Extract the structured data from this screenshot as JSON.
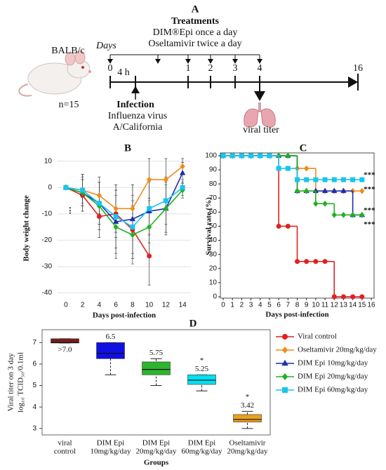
{
  "timeline": {
    "panel": "A",
    "treatments_title": "Treatments",
    "treatments": [
      "DIM®Epi once a day",
      "Oseltamivir twice a day"
    ],
    "days_label": "Days",
    "ticks": [
      "0",
      "4 h",
      "1",
      "2",
      "3",
      "4",
      "16"
    ],
    "strain": "BALB/c",
    "n": "n=15",
    "infection_title": "Infection",
    "infection_lines": [
      "Influenza virus",
      "A/California"
    ],
    "endpoint": "viral titer"
  },
  "legend": {
    "items": [
      {
        "name": "Viral control",
        "color": "#e02020",
        "marker": "circle"
      },
      {
        "name": "Oseltamivir 20mg/kg/day",
        "color": "#f08c1a",
        "marker": "diamond"
      },
      {
        "name": "DIM Epi 10mg/kg/day",
        "color": "#1a2fb0",
        "marker": "triangle"
      },
      {
        "name": "DIM Epi 20mg/kg/day",
        "color": "#22b022",
        "marker": "diamond"
      },
      {
        "name": "DIM Epi 60mg/kg/day",
        "color": "#19c4f0",
        "marker": "square"
      }
    ]
  },
  "chart_data": [
    {
      "type": "line",
      "panel": "B",
      "xlabel": "Days post-infection",
      "ylabel": "Body weight change",
      "x": [
        0,
        2,
        4,
        6,
        8,
        10,
        12,
        14
      ],
      "xlim": [
        -1,
        15
      ],
      "xticks": [
        0,
        2,
        4,
        6,
        8,
        10,
        12,
        14
      ],
      "ylim": [
        -42,
        11
      ],
      "yticks": [
        -40,
        -30,
        -20,
        -10,
        0,
        10
      ],
      "grid": true,
      "series": [
        {
          "values": [
            0,
            -3,
            -11,
            -10,
            -16,
            -26,
            null,
            null
          ],
          "errors": [
            0,
            6,
            8,
            9,
            11,
            11,
            null,
            null
          ]
        },
        {
          "values": [
            0,
            -1,
            -3,
            -8,
            -8,
            3,
            3,
            8
          ],
          "errors": [
            0,
            5,
            7,
            9,
            9,
            8,
            8,
            3
          ]
        },
        {
          "values": [
            0,
            -2,
            -6,
            -13,
            -12,
            -9,
            -8,
            5.5
          ],
          "errors": [
            0,
            5,
            8,
            12,
            13,
            12,
            9,
            4
          ]
        },
        {
          "values": [
            0,
            -2,
            -7,
            -15,
            -18,
            -15,
            -8,
            -1
          ],
          "errors": [
            0,
            7,
            9,
            12,
            11,
            11,
            10,
            3
          ]
        },
        {
          "values": [
            0,
            -1,
            -6,
            -11,
            -15,
            -8,
            -5,
            0
          ],
          "errors": [
            0,
            6,
            8,
            12,
            12,
            10,
            9,
            3
          ]
        }
      ],
      "annotations": [
        {
          "text": "⋮",
          "x": 0.5,
          "y": -9
        }
      ]
    },
    {
      "type": "step",
      "panel": "C",
      "xlabel": "Days post-infection",
      "ylabel": "Survival rate (%)",
      "x": [
        0,
        1,
        2,
        3,
        4,
        5,
        6,
        7,
        8,
        9,
        10,
        11,
        12,
        13,
        14,
        15
      ],
      "xlim": [
        0,
        16
      ],
      "xticks": [
        0,
        1,
        2,
        3,
        4,
        5,
        6,
        7,
        8,
        9,
        10,
        11,
        12,
        13,
        14,
        15,
        16
      ],
      "ylim": [
        0,
        100
      ],
      "yticks": [
        0,
        10,
        20,
        30,
        40,
        50,
        60,
        70,
        80,
        90,
        100
      ],
      "series": [
        {
          "values": [
            100,
            100,
            100,
            100,
            100,
            100,
            50,
            50,
            25,
            25,
            25,
            25,
            0,
            0,
            0,
            0
          ]
        },
        {
          "values": [
            100,
            100,
            100,
            100,
            100,
            100,
            100,
            100,
            91,
            91,
            75,
            75,
            75,
            75,
            75,
            75
          ]
        },
        {
          "values": [
            100,
            100,
            100,
            100,
            100,
            100,
            100,
            100,
            75,
            75,
            75,
            75,
            75,
            75,
            58,
            58
          ]
        },
        {
          "values": [
            100,
            100,
            100,
            100,
            100,
            100,
            100,
            100,
            75,
            75,
            66,
            66,
            58,
            58,
            58,
            58
          ]
        },
        {
          "values": [
            100,
            100,
            100,
            100,
            100,
            100,
            91,
            91,
            83,
            83,
            83,
            83,
            83,
            83,
            83,
            83
          ]
        }
      ],
      "annotations": [
        {
          "text": "***",
          "x": 15.8,
          "y": 86
        },
        {
          "text": "***",
          "x": 15.8,
          "y": 76
        },
        {
          "text": "***",
          "x": 15.8,
          "y": 61
        },
        {
          "text": "***",
          "x": 15.8,
          "y": 51
        }
      ]
    },
    {
      "type": "box",
      "panel": "D",
      "xlabel": "Groups",
      "ylabel": [
        "Viral titer on 3 day",
        "log₁₀ TCID₅₀/0.1ml"
      ],
      "categories": [
        [
          "viral",
          "control"
        ],
        [
          "DIM Epi",
          "10mg/kg/day"
        ],
        [
          "DIM Epi",
          "20mg/kg/day"
        ],
        [
          "DIM Epi",
          "60mg/kg/day"
        ],
        [
          "Oseltamivir",
          "20mg/kg/day"
        ]
      ],
      "ylim": [
        2.7,
        7.6
      ],
      "yticks": [
        3,
        4,
        5,
        6,
        7
      ],
      "boxes": [
        {
          "min": 6.98,
          "q1": 6.98,
          "median": 7.0,
          "q3": 7.18,
          "max": 7.18,
          "color": "#7b1c1c"
        },
        {
          "min": 5.5,
          "q1": 6.25,
          "median": 6.5,
          "q3": 7.0,
          "max": 7.0,
          "color": "#1010e0"
        },
        {
          "min": 5.0,
          "q1": 5.5,
          "median": 5.75,
          "q3": 6.1,
          "max": 6.25,
          "color": "#2db52d"
        },
        {
          "min": 4.75,
          "q1": 5.05,
          "median": 5.25,
          "q3": 5.5,
          "max": 5.5,
          "color": "#00e0f0"
        },
        {
          "min": 3.0,
          "q1": 3.3,
          "median": 3.42,
          "q3": 3.65,
          "max": 3.8,
          "color": "#e8a020"
        }
      ],
      "value_labels": [
        ">7.0",
        "6.5",
        "5.75",
        "5.25",
        "3.42"
      ],
      "significance": [
        null,
        null,
        null,
        "*",
        "*"
      ]
    }
  ]
}
